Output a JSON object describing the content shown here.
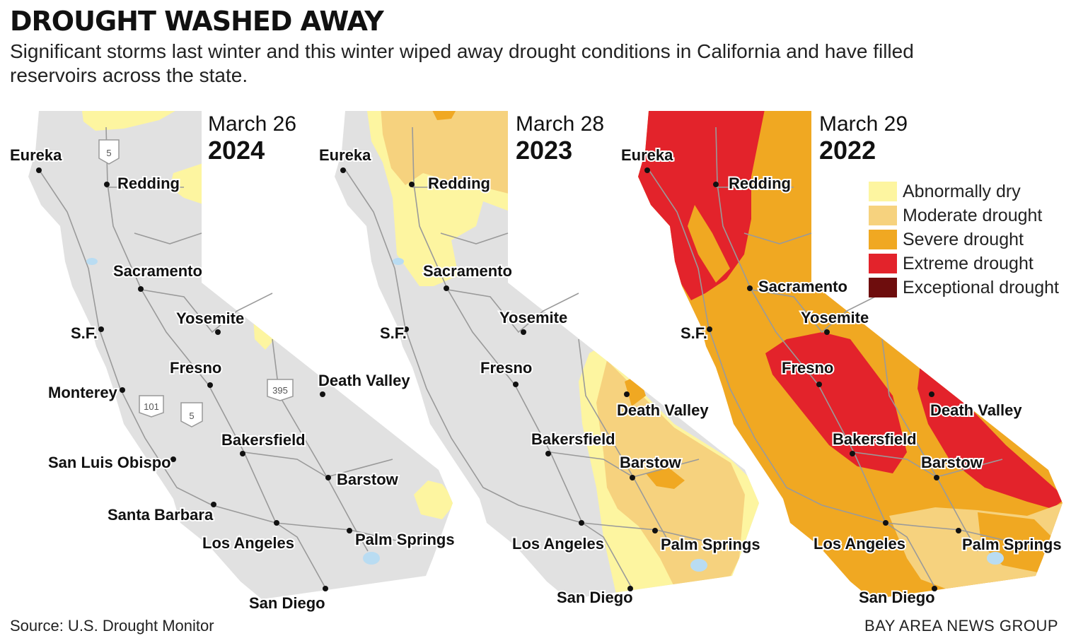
{
  "title": "DROUGHT WASHED AWAY",
  "subtitle": "Significant storms last winter and this winter wiped away drought conditions in California and have filled reservoirs across the state.",
  "legend": [
    {
      "label": "Abnormally dry",
      "color": "#fdf5a0"
    },
    {
      "label": "Moderate drought",
      "color": "#f6d27e"
    },
    {
      "label": "Severe drought",
      "color": "#f0a822"
    },
    {
      "label": "Extreme drought",
      "color": "#e3232b"
    },
    {
      "label": "Exceptional drought",
      "color": "#6e0d0d"
    }
  ],
  "base_color": "#e1e1e1",
  "maps": [
    {
      "date": "March 26",
      "year": "2024",
      "cities": [
        "Eureka",
        "Redding",
        "Sacramento",
        "S.F.",
        "Yosemite",
        "Fresno",
        "Monterey",
        "Death Valley",
        "Bakersfield",
        "San Luis Obispo",
        "Barstow",
        "Santa Barbara",
        "Los Angeles",
        "Palm Springs",
        "San Diego"
      ],
      "highway_shields": [
        "5",
        "101",
        "5",
        "395"
      ]
    },
    {
      "date": "March 28",
      "year": "2023",
      "cities": [
        "Eureka",
        "Redding",
        "Sacramento",
        "S.F.",
        "Yosemite",
        "Fresno",
        "Death Valley",
        "Bakersfield",
        "Barstow",
        "Los Angeles",
        "Palm Springs",
        "San Diego"
      ]
    },
    {
      "date": "March 29",
      "year": "2022",
      "cities": [
        "Eureka",
        "Redding",
        "Sacramento",
        "S.F.",
        "Yosemite",
        "Fresno",
        "Death Valley",
        "Bakersfield",
        "Barstow",
        "Los Angeles",
        "Palm Springs",
        "San Diego"
      ]
    }
  ],
  "source": "Source: U.S. Drought Monitor",
  "credit": "BAY AREA NEWS GROUP"
}
